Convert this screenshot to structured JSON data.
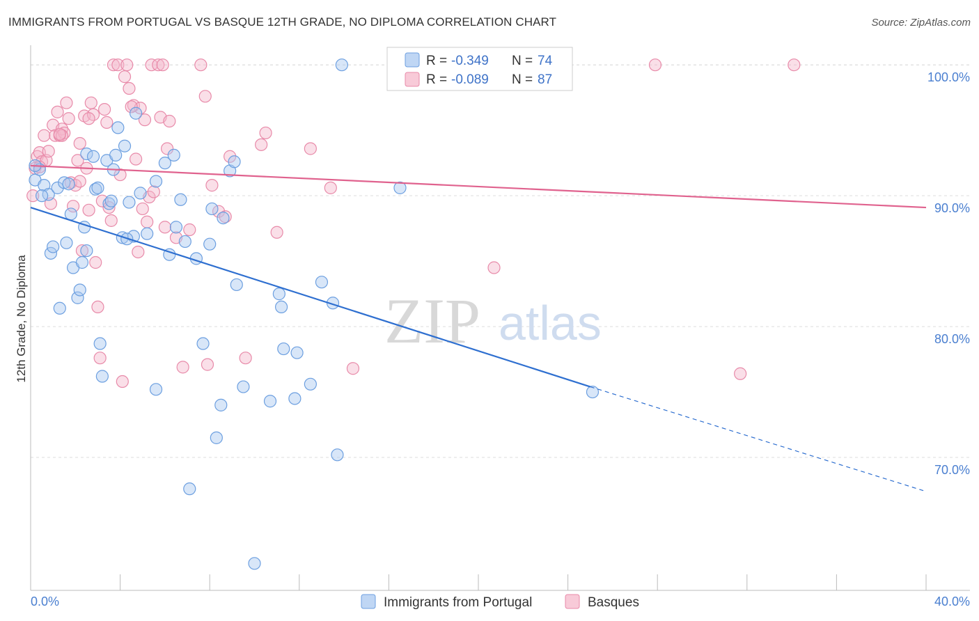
{
  "title": "IMMIGRANTS FROM PORTUGAL VS BASQUE 12TH GRADE, NO DIPLOMA CORRELATION CHART",
  "source": "Source: ZipAtlas.com",
  "watermark": {
    "zip": "ZIP",
    "atlas": "atlas"
  },
  "legend": {
    "rows": [
      {
        "r_label": "R =",
        "r_value": "-0.349",
        "n_label": "N =",
        "n_value": "74"
      },
      {
        "r_label": "R =",
        "r_value": "-0.089",
        "n_label": "N =",
        "n_value": "87"
      }
    ]
  },
  "bottom_legend": {
    "series1": "Immigrants from Portugal",
    "series2": "Basques"
  },
  "colors": {
    "blue_fill": "#a9c8f0",
    "blue_stroke": "#6c9fe0",
    "blue_line": "#2e6fd0",
    "pink_fill": "#f5b8cb",
    "pink_stroke": "#e88aa9",
    "pink_line": "#e0628e",
    "grid": "#dddddd",
    "tick_text": "#4a7fd0"
  },
  "chart_data": {
    "type": "scatter",
    "xlabel": "",
    "ylabel": "12th Grade, No Diploma",
    "xlim": [
      0,
      40
    ],
    "ylim": [
      60,
      101.5
    ],
    "x_tick_labels": [
      "0.0%",
      "40.0%"
    ],
    "y_ticks": [
      70,
      80,
      90,
      100
    ],
    "y_tick_labels": [
      "70.0%",
      "80.0%",
      "90.0%",
      "100.0%"
    ],
    "grid": true,
    "legend_position": "top-center",
    "series": [
      {
        "name": "Immigrants from Portugal",
        "trend": {
          "x0": 0,
          "y0": 89.1,
          "x1": 25.0,
          "y1": 75.4,
          "dash_to_x": 40,
          "dash_to_y": 67.4
        },
        "points": [
          [
            0.2,
            91.2
          ],
          [
            0.4,
            92.0
          ],
          [
            0.6,
            90.8
          ],
          [
            0.8,
            90.1
          ],
          [
            0.9,
            85.6
          ],
          [
            1.0,
            86.1
          ],
          [
            1.2,
            90.6
          ],
          [
            1.3,
            81.4
          ],
          [
            1.5,
            91.0
          ],
          [
            1.6,
            86.4
          ],
          [
            1.8,
            88.6
          ],
          [
            1.9,
            84.5
          ],
          [
            2.1,
            82.2
          ],
          [
            2.2,
            82.8
          ],
          [
            2.3,
            84.9
          ],
          [
            2.4,
            87.6
          ],
          [
            2.5,
            85.8
          ],
          [
            2.5,
            93.2
          ],
          [
            2.8,
            93.0
          ],
          [
            2.9,
            90.5
          ],
          [
            3.0,
            90.6
          ],
          [
            3.1,
            78.7
          ],
          [
            3.2,
            76.2
          ],
          [
            3.4,
            92.7
          ],
          [
            3.5,
            89.4
          ],
          [
            3.6,
            89.6
          ],
          [
            3.7,
            92.0
          ],
          [
            3.8,
            93.1
          ],
          [
            3.9,
            95.2
          ],
          [
            4.1,
            86.8
          ],
          [
            4.2,
            93.8
          ],
          [
            4.4,
            89.5
          ],
          [
            4.6,
            86.9
          ],
          [
            4.7,
            96.3
          ],
          [
            4.9,
            90.2
          ],
          [
            5.2,
            87.1
          ],
          [
            5.6,
            75.2
          ],
          [
            5.6,
            91.1
          ],
          [
            6.0,
            92.5
          ],
          [
            6.2,
            85.5
          ],
          [
            6.4,
            93.1
          ],
          [
            6.5,
            87.6
          ],
          [
            6.7,
            89.7
          ],
          [
            6.9,
            86.5
          ],
          [
            7.1,
            67.6
          ],
          [
            7.4,
            85.2
          ],
          [
            7.7,
            78.7
          ],
          [
            8.0,
            86.3
          ],
          [
            8.1,
            89.0
          ],
          [
            8.3,
            71.5
          ],
          [
            8.5,
            74.0
          ],
          [
            8.6,
            88.3
          ],
          [
            8.9,
            91.9
          ],
          [
            9.1,
            92.6
          ],
          [
            9.2,
            83.2
          ],
          [
            9.5,
            75.4
          ],
          [
            10.0,
            61.9
          ],
          [
            10.7,
            74.3
          ],
          [
            11.1,
            82.5
          ],
          [
            11.2,
            81.5
          ],
          [
            11.3,
            78.3
          ],
          [
            11.8,
            74.5
          ],
          [
            11.9,
            78.0
          ],
          [
            12.5,
            75.6
          ],
          [
            13.0,
            83.4
          ],
          [
            13.5,
            81.8
          ],
          [
            13.7,
            70.2
          ],
          [
            13.9,
            100.0
          ],
          [
            16.5,
            90.6
          ],
          [
            25.1,
            75.0
          ],
          [
            0.2,
            92.3
          ],
          [
            0.5,
            90.0
          ],
          [
            1.7,
            90.9
          ],
          [
            4.3,
            86.7
          ]
        ]
      },
      {
        "name": "Basques",
        "trend": {
          "x0": 0,
          "y0": 92.3,
          "x1": 40,
          "y1": 89.1
        },
        "points": [
          [
            0.1,
            90.0
          ],
          [
            0.2,
            92.1
          ],
          [
            0.3,
            93.0
          ],
          [
            0.4,
            93.3
          ],
          [
            0.5,
            92.6
          ],
          [
            0.6,
            94.6
          ],
          [
            0.7,
            92.7
          ],
          [
            0.8,
            93.4
          ],
          [
            0.9,
            89.4
          ],
          [
            1.0,
            95.4
          ],
          [
            1.1,
            94.6
          ],
          [
            1.2,
            96.4
          ],
          [
            1.3,
            94.6
          ],
          [
            1.4,
            95.1
          ],
          [
            1.5,
            94.8
          ],
          [
            1.6,
            97.1
          ],
          [
            1.7,
            95.9
          ],
          [
            1.8,
            91.0
          ],
          [
            1.9,
            89.2
          ],
          [
            2.0,
            90.8
          ],
          [
            2.1,
            92.7
          ],
          [
            2.2,
            91.1
          ],
          [
            2.3,
            85.8
          ],
          [
            2.4,
            96.1
          ],
          [
            2.5,
            92.1
          ],
          [
            2.6,
            88.9
          ],
          [
            2.7,
            97.1
          ],
          [
            2.8,
            96.2
          ],
          [
            2.9,
            84.9
          ],
          [
            3.0,
            81.5
          ],
          [
            3.1,
            77.6
          ],
          [
            3.2,
            89.6
          ],
          [
            3.3,
            96.6
          ],
          [
            3.4,
            95.6
          ],
          [
            3.5,
            89.1
          ],
          [
            3.6,
            88.1
          ],
          [
            3.7,
            100.0
          ],
          [
            3.9,
            100.0
          ],
          [
            4.0,
            91.6
          ],
          [
            4.1,
            75.8
          ],
          [
            4.2,
            99.1
          ],
          [
            4.3,
            100.0
          ],
          [
            4.4,
            98.2
          ],
          [
            4.6,
            96.9
          ],
          [
            4.7,
            92.8
          ],
          [
            4.8,
            85.7
          ],
          [
            4.9,
            96.7
          ],
          [
            5.0,
            89.0
          ],
          [
            5.1,
            95.8
          ],
          [
            5.2,
            88.0
          ],
          [
            5.3,
            89.9
          ],
          [
            5.4,
            100.0
          ],
          [
            5.5,
            90.3
          ],
          [
            5.7,
            100.0
          ],
          [
            5.8,
            96.0
          ],
          [
            6.0,
            87.6
          ],
          [
            6.1,
            93.6
          ],
          [
            6.2,
            95.7
          ],
          [
            6.5,
            86.8
          ],
          [
            6.8,
            76.9
          ],
          [
            7.1,
            87.4
          ],
          [
            7.6,
            100.0
          ],
          [
            7.8,
            97.6
          ],
          [
            7.9,
            77.1
          ],
          [
            8.1,
            90.8
          ],
          [
            8.4,
            88.8
          ],
          [
            8.7,
            88.4
          ],
          [
            8.9,
            93.0
          ],
          [
            9.6,
            77.6
          ],
          [
            10.3,
            93.9
          ],
          [
            10.5,
            94.8
          ],
          [
            11.0,
            87.2
          ],
          [
            12.5,
            93.6
          ],
          [
            13.4,
            90.6
          ],
          [
            14.4,
            76.8
          ],
          [
            16.6,
            100.0
          ],
          [
            20.7,
            84.5
          ],
          [
            27.9,
            100.0
          ],
          [
            31.7,
            76.4
          ],
          [
            34.1,
            100.0
          ],
          [
            1.4,
            94.6
          ],
          [
            2.6,
            95.9
          ],
          [
            4.5,
            96.8
          ],
          [
            5.9,
            100.0
          ],
          [
            0.4,
            92.2
          ],
          [
            1.3,
            94.7
          ],
          [
            2.2,
            94.0
          ]
        ]
      }
    ]
  }
}
